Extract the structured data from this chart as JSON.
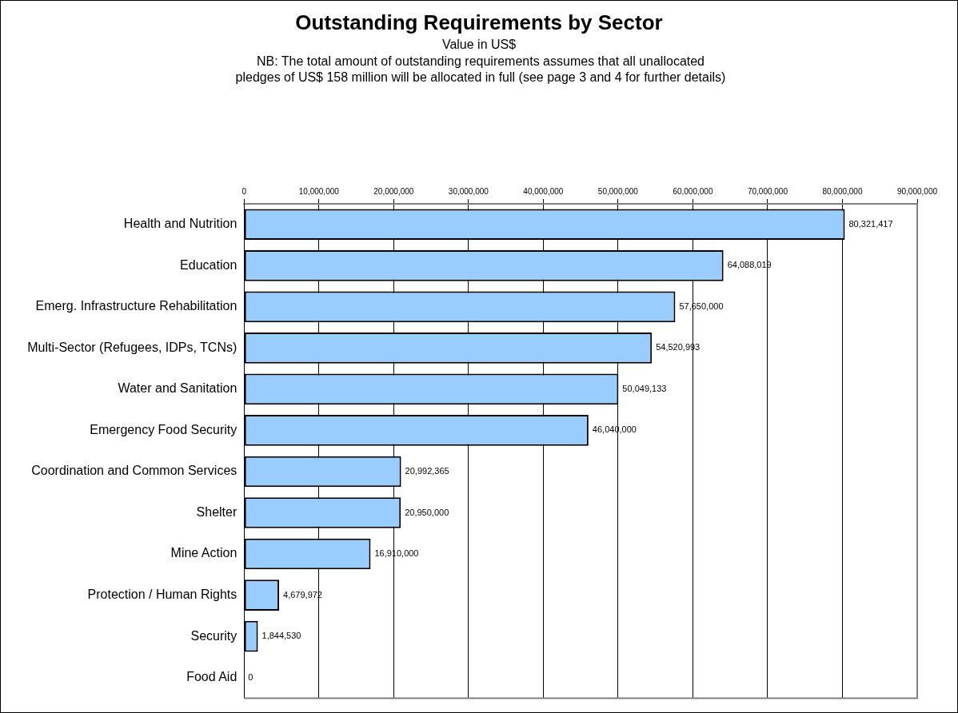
{
  "chart_data": {
    "type": "bar",
    "orientation": "horizontal",
    "title": "Outstanding Requirements by Sector",
    "subtitle": "Value in US$",
    "annotations": [
      "NB: The total amount of outstanding requirements assumes that all unallocated pledges of US$ 158 million will be allocated in full (see page 3 and 4 for further details)"
    ],
    "categories": [
      "Health and Nutrition",
      "Education",
      "Emerg. Infrastructure Rehabilitation",
      "Multi-Sector (Refugees, IDPs, TCNs)",
      "Water and Sanitation",
      "Emergency Food Security",
      "Coordination and Common Services",
      "Shelter",
      "Mine Action",
      "Protection / Human Rights",
      "Security",
      "Food Aid"
    ],
    "values": [
      80321417,
      64088019,
      57650000,
      54520993,
      50049133,
      46040000,
      20992365,
      20950000,
      16910000,
      4679972,
      1844530,
      0
    ],
    "value_labels": [
      "80,321,417",
      "64,088,019",
      "57,650,000",
      "54,520,993",
      "50,049,133",
      "46,040,000",
      "20,992,365",
      "20,950,000",
      "16,910,000",
      "4,679,972",
      "1,844,530",
      "0"
    ],
    "color": "#99ccff",
    "xlim": [
      0,
      90000000
    ],
    "xticks": [
      0,
      {
        "value": 10000000,
        "label": "10,000,000"
      },
      {
        "value": 20000000,
        "label": "20,000,000"
      },
      {
        "value": 30000000,
        "label": "30,000,000"
      },
      {
        "value": 40000000,
        "label": "40,000,000"
      },
      {
        "value": 50000000,
        "label": "50,000,000"
      },
      {
        "value": 60000000,
        "label": "60,000,000"
      },
      {
        "value": 70000000,
        "label": "70,000,000"
      },
      {
        "value": 80000000,
        "label": "80,000,000"
      },
      {
        "value": 90000000,
        "label": "90,000,000"
      }
    ],
    "grid": "x"
  }
}
